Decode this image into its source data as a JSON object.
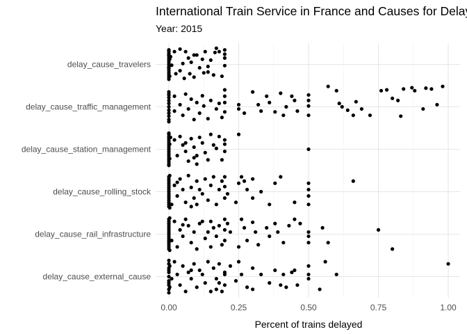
{
  "chart_data": {
    "type": "scatter",
    "title": "International Train Service in France and Causes for Delays",
    "subtitle": "Year: 2015",
    "xlabel": "Percent of trains delayed",
    "ylabel": "",
    "xlim": [
      -0.06,
      1.04
    ],
    "x_ticks": [
      0.0,
      0.25,
      0.5,
      0.75,
      1.0
    ],
    "x_tick_labels": [
      "0.00",
      "0.25",
      "0.50",
      "0.75",
      "1.00"
    ],
    "categories": [
      "delay_cause_travelers",
      "delay_cause_traffic_management",
      "delay_cause_station_management",
      "delay_cause_rolling_stock",
      "delay_cause_rail_infrastructure",
      "delay_cause_external_cause"
    ],
    "grid": true,
    "legend": "none",
    "point_color": "#000000",
    "points": {
      "delay_cause_travelers": [
        [
          0,
          0.34
        ],
        [
          0,
          0.2
        ],
        [
          0,
          -0.05
        ],
        [
          0,
          -0.3
        ],
        [
          0,
          0.1
        ],
        [
          0,
          -0.2
        ],
        [
          0,
          0.25
        ],
        [
          0,
          0.05
        ],
        [
          0,
          -0.1
        ],
        [
          0,
          0.3
        ],
        [
          0,
          -0.25
        ],
        [
          0,
          0.15
        ],
        [
          0,
          -0.35
        ],
        [
          0,
          0
        ],
        [
          0,
          0.22
        ],
        [
          0,
          -0.15
        ],
        [
          0,
          0.32
        ],
        [
          0,
          -0.08
        ],
        [
          0.003,
          0.12
        ],
        [
          0.003,
          -0.28
        ],
        [
          0.006,
          0.18
        ],
        [
          0.01,
          -0.02
        ],
        [
          0.02,
          0.3
        ],
        [
          0.025,
          -0.22
        ],
        [
          0.04,
          0.36
        ],
        [
          0.05,
          0.02
        ],
        [
          0.055,
          -0.33
        ],
        [
          0.06,
          0.3
        ],
        [
          0.07,
          0.15
        ],
        [
          0.075,
          -0.22
        ],
        [
          0.08,
          0.05
        ],
        [
          0.09,
          -0.3
        ],
        [
          0.1,
          0.22
        ],
        [
          0.11,
          -0.08
        ],
        [
          0.12,
          0.12
        ],
        [
          0.125,
          -0.2
        ],
        [
          0.13,
          0.3
        ],
        [
          0.14,
          -0.05
        ],
        [
          0.15,
          0.1
        ],
        [
          0.16,
          -0.25
        ],
        [
          0.165,
          0.28
        ],
        [
          0.17,
          0.38
        ],
        [
          0.18,
          0.3
        ],
        [
          0.19,
          -0.28
        ],
        [
          0.2,
          0.34
        ],
        [
          0.2,
          0.15
        ],
        [
          0.2,
          -0.03
        ],
        [
          0.2,
          0.24
        ],
        [
          0.04,
          -0.15
        ],
        [
          0.09,
          0.22
        ],
        [
          0.14,
          -0.18
        ]
      ],
      "delay_cause_traffic_management": [
        [
          0,
          0.3
        ],
        [
          0,
          0.15
        ],
        [
          0,
          0
        ],
        [
          0,
          -0.15
        ],
        [
          0,
          -0.3
        ],
        [
          0,
          0.22
        ],
        [
          0,
          -0.08
        ],
        [
          0,
          0.08
        ],
        [
          0,
          -0.22
        ],
        [
          0,
          0.35
        ],
        [
          0,
          -0.35
        ],
        [
          0,
          0.28
        ],
        [
          0.02,
          -0.1
        ],
        [
          0.02,
          0.25
        ],
        [
          0.04,
          0.05
        ],
        [
          0.05,
          -0.2
        ],
        [
          0.06,
          0.3
        ],
        [
          0.07,
          -0.05
        ],
        [
          0.08,
          0.18
        ],
        [
          0.09,
          -0.3
        ],
        [
          0.1,
          0.1
        ],
        [
          0.11,
          -0.15
        ],
        [
          0.12,
          0.26
        ],
        [
          0.125,
          0.02
        ],
        [
          0.14,
          -0.28
        ],
        [
          0.15,
          0.15
        ],
        [
          0.17,
          -0.05
        ],
        [
          0.18,
          0.08
        ],
        [
          0.19,
          -0.25
        ],
        [
          0.2,
          0.4
        ],
        [
          0.2,
          0.25
        ],
        [
          0.2,
          0.1
        ],
        [
          0.2,
          -0.12
        ],
        [
          0.25,
          0.05
        ],
        [
          0.25,
          -0.05
        ],
        [
          0.27,
          -0.15
        ],
        [
          0.3,
          0.35
        ],
        [
          0.32,
          0.05
        ],
        [
          0.33,
          -0.1
        ],
        [
          0.35,
          0.25
        ],
        [
          0.36,
          0.1
        ],
        [
          0.38,
          -0.12
        ],
        [
          0.4,
          0.32
        ],
        [
          0.41,
          -0.2
        ],
        [
          0.42,
          0
        ],
        [
          0.44,
          0.25
        ],
        [
          0.45,
          0.15
        ],
        [
          0.46,
          -0.1
        ],
        [
          0.5,
          0.15
        ],
        [
          0.5,
          0.02
        ],
        [
          0.5,
          -0.2
        ],
        [
          0.5,
          0.28
        ],
        [
          0.57,
          0.48
        ],
        [
          0.6,
          0.38
        ],
        [
          0.61,
          0.08
        ],
        [
          0.62,
          0
        ],
        [
          0.64,
          -0.08
        ],
        [
          0.66,
          -0.2
        ],
        [
          0.67,
          0.12
        ],
        [
          0.69,
          -0.05
        ],
        [
          0.72,
          -0.2
        ],
        [
          0.76,
          0.38
        ],
        [
          0.78,
          0.4
        ],
        [
          0.8,
          0.2
        ],
        [
          0.82,
          0.15
        ],
        [
          0.83,
          -0.22
        ],
        [
          0.84,
          0.42
        ],
        [
          0.87,
          0.45
        ],
        [
          0.88,
          0.38
        ],
        [
          0.91,
          -0.05
        ],
        [
          0.92,
          0.44
        ],
        [
          0.94,
          0.42
        ],
        [
          0.96,
          0.05
        ],
        [
          0.98,
          0.48
        ]
      ],
      "delay_cause_station_management": [
        [
          0,
          0.35
        ],
        [
          0,
          0.25
        ],
        [
          0,
          0.15
        ],
        [
          0,
          0.05
        ],
        [
          0,
          -0.05
        ],
        [
          0,
          -0.15
        ],
        [
          0,
          -0.25
        ],
        [
          0,
          -0.35
        ],
        [
          0,
          0.3
        ],
        [
          0,
          0.2
        ],
        [
          0,
          0.1
        ],
        [
          0,
          0
        ],
        [
          0,
          -0.1
        ],
        [
          0,
          -0.2
        ],
        [
          0,
          -0.3
        ],
        [
          0,
          0.38
        ],
        [
          0,
          -0.38
        ],
        [
          0.003,
          0.12
        ],
        [
          0.003,
          -0.22
        ],
        [
          0.006,
          0.28
        ],
        [
          0.02,
          0.22
        ],
        [
          0.03,
          -0.15
        ],
        [
          0.04,
          0.3
        ],
        [
          0.05,
          0.1
        ],
        [
          0.06,
          -0.05
        ],
        [
          0.07,
          -0.28
        ],
        [
          0.08,
          0.25
        ],
        [
          0.09,
          0.05
        ],
        [
          0.1,
          -0.15
        ],
        [
          0.1,
          -0.35
        ],
        [
          0.11,
          0.28
        ],
        [
          0.12,
          0.15
        ],
        [
          0.13,
          -0.08
        ],
        [
          0.14,
          -0.25
        ],
        [
          0.15,
          0.35
        ],
        [
          0.16,
          0.1
        ],
        [
          0.17,
          0.02
        ],
        [
          0.18,
          0.3
        ],
        [
          0.19,
          -0.25
        ],
        [
          0.2,
          0.12
        ],
        [
          0.2,
          -0.05
        ],
        [
          0.2,
          0.22
        ],
        [
          0.25,
          0.35
        ],
        [
          0.06,
          0.15
        ],
        [
          0.09,
          -0.2
        ],
        [
          0.5,
          0
        ]
      ],
      "delay_cause_rolling_stock": [
        [
          0,
          0.35
        ],
        [
          0,
          0.25
        ],
        [
          0,
          0.15
        ],
        [
          0,
          0.05
        ],
        [
          0,
          -0.05
        ],
        [
          0,
          -0.15
        ],
        [
          0,
          -0.25
        ],
        [
          0,
          -0.35
        ],
        [
          0,
          0.3
        ],
        [
          0,
          0.2
        ],
        [
          0,
          0.1
        ],
        [
          0,
          0
        ],
        [
          0,
          -0.1
        ],
        [
          0,
          -0.2
        ],
        [
          0,
          -0.3
        ],
        [
          0.003,
          0.38
        ],
        [
          0.003,
          -0.38
        ],
        [
          0.01,
          -0.3
        ],
        [
          0.02,
          0.15
        ],
        [
          0.03,
          -0.1
        ],
        [
          0.04,
          0.3
        ],
        [
          0.05,
          0.05
        ],
        [
          0.06,
          -0.25
        ],
        [
          0.07,
          0.38
        ],
        [
          0.08,
          0.1
        ],
        [
          0.09,
          -0.15
        ],
        [
          0.1,
          0.25
        ],
        [
          0.1,
          -0.3
        ],
        [
          0.11,
          0.05
        ],
        [
          0.12,
          -0.05
        ],
        [
          0.13,
          0.3
        ],
        [
          0.14,
          -0.2
        ],
        [
          0.15,
          0.15
        ],
        [
          0.16,
          0.35
        ],
        [
          0.17,
          -0.3
        ],
        [
          0.18,
          0.05
        ],
        [
          0.19,
          0.25
        ],
        [
          0.2,
          -0.15
        ],
        [
          0.2,
          0.35
        ],
        [
          0.2,
          0.12
        ],
        [
          0.21,
          -0.05
        ],
        [
          0.24,
          -0.25
        ],
        [
          0.25,
          0.2
        ],
        [
          0.26,
          0.35
        ],
        [
          0.27,
          0.25
        ],
        [
          0.28,
          0.05
        ],
        [
          0.3,
          -0.15
        ],
        [
          0.3,
          0.3
        ],
        [
          0.33,
          0
        ],
        [
          0.36,
          -0.3
        ],
        [
          0.38,
          0.2
        ],
        [
          0.4,
          0.35
        ],
        [
          0.45,
          -0.25
        ],
        [
          0.5,
          0.2
        ],
        [
          0.5,
          0.05
        ],
        [
          0.5,
          -0.1
        ],
        [
          0.5,
          -0.3
        ],
        [
          0.66,
          0.25
        ],
        [
          0.03,
          0.22
        ],
        [
          0.08,
          -0.35
        ]
      ],
      "delay_cause_rail_infrastructure": [
        [
          0,
          0.35
        ],
        [
          0,
          0.25
        ],
        [
          0,
          0.15
        ],
        [
          0,
          0.05
        ],
        [
          0,
          -0.05
        ],
        [
          0,
          -0.15
        ],
        [
          0,
          -0.25
        ],
        [
          0,
          -0.35
        ],
        [
          0,
          0.3
        ],
        [
          0,
          0.2
        ],
        [
          0,
          0.1
        ],
        [
          0,
          0
        ],
        [
          0,
          -0.1
        ],
        [
          0,
          -0.2
        ],
        [
          0,
          -0.3
        ],
        [
          0.003,
          0.38
        ],
        [
          0.003,
          -0.38
        ],
        [
          0.01,
          -0.15
        ],
        [
          0.02,
          0.3
        ],
        [
          0.03,
          -0.3
        ],
        [
          0.04,
          0.1
        ],
        [
          0.05,
          -0.05
        ],
        [
          0.06,
          0.35
        ],
        [
          0.07,
          0.2
        ],
        [
          0.08,
          -0.2
        ],
        [
          0.09,
          0.05
        ],
        [
          0.1,
          -0.35
        ],
        [
          0.11,
          0.25
        ],
        [
          0.12,
          0.3
        ],
        [
          0.13,
          -0.1
        ],
        [
          0.14,
          0.05
        ],
        [
          0.15,
          -0.3
        ],
        [
          0.16,
          0.15
        ],
        [
          0.17,
          -0.05
        ],
        [
          0.18,
          0.2
        ],
        [
          0.19,
          -0.25
        ],
        [
          0.2,
          0.35
        ],
        [
          0.2,
          0.1
        ],
        [
          0.2,
          -0.15
        ],
        [
          0.21,
          0.25
        ],
        [
          0.22,
          0.05
        ],
        [
          0.25,
          -0.3
        ],
        [
          0.26,
          0.35
        ],
        [
          0.27,
          0.15
        ],
        [
          0.28,
          -0.15
        ],
        [
          0.3,
          0.28
        ],
        [
          0.31,
          0.05
        ],
        [
          0.32,
          -0.25
        ],
        [
          0.35,
          0.15
        ],
        [
          0.36,
          -0.05
        ],
        [
          0.38,
          0.25
        ],
        [
          0.39,
          0.05
        ],
        [
          0.41,
          -0.2
        ],
        [
          0.43,
          0.2
        ],
        [
          0.45,
          0.35
        ],
        [
          0.47,
          0.25
        ],
        [
          0.5,
          0.05
        ],
        [
          0.5,
          -0.05
        ],
        [
          0.5,
          -0.2
        ],
        [
          0.55,
          0.15
        ],
        [
          0.57,
          -0.2
        ],
        [
          0.75,
          0.1
        ],
        [
          0.8,
          -0.35
        ],
        [
          0.05,
          0.22
        ],
        [
          0.15,
          0.3
        ]
      ],
      "delay_cause_external_cause": [
        [
          0,
          0.3
        ],
        [
          0,
          0.2
        ],
        [
          0,
          0.1
        ],
        [
          0,
          0
        ],
        [
          0,
          -0.1
        ],
        [
          0,
          -0.2
        ],
        [
          0,
          -0.3
        ],
        [
          0,
          0.38
        ],
        [
          0,
          -0.38
        ],
        [
          0,
          0.15
        ],
        [
          0,
          -0.15
        ],
        [
          0.003,
          0.25
        ],
        [
          0.003,
          -0.25
        ],
        [
          0.01,
          -0.05
        ],
        [
          0.02,
          0.35
        ],
        [
          0.03,
          0.05
        ],
        [
          0.04,
          -0.2
        ],
        [
          0.05,
          0.25
        ],
        [
          0.06,
          -0.35
        ],
        [
          0.07,
          0.1
        ],
        [
          0.08,
          -0.05
        ],
        [
          0.09,
          0.3
        ],
        [
          0.1,
          -0.25
        ],
        [
          0.11,
          0.15
        ],
        [
          0.12,
          0.05
        ],
        [
          0.13,
          -0.15
        ],
        [
          0.14,
          0.35
        ],
        [
          0.15,
          -0.35
        ],
        [
          0.16,
          0.2
        ],
        [
          0.17,
          -0.3
        ],
        [
          0.17,
          -0.05
        ],
        [
          0.18,
          0.3
        ],
        [
          0.19,
          -0.35
        ],
        [
          0.2,
          0.1
        ],
        [
          0.2,
          -0.2
        ],
        [
          0.2,
          0.05
        ],
        [
          0.22,
          0.25
        ],
        [
          0.24,
          -0.1
        ],
        [
          0.25,
          0.35
        ],
        [
          0.26,
          0.05
        ],
        [
          0.28,
          -0.25
        ],
        [
          0.3,
          0.2
        ],
        [
          0.3,
          -0.3
        ],
        [
          0.33,
          0.05
        ],
        [
          0.36,
          -0.15
        ],
        [
          0.38,
          0.15
        ],
        [
          0.4,
          -0.2
        ],
        [
          0.41,
          0.05
        ],
        [
          0.42,
          -0.25
        ],
        [
          0.44,
          0.1
        ],
        [
          0.45,
          0.15
        ],
        [
          0.46,
          -0.2
        ],
        [
          0.5,
          0.25
        ],
        [
          0.5,
          0.05
        ],
        [
          0.5,
          -0.05
        ],
        [
          0.54,
          -0.3
        ],
        [
          0.56,
          0.35
        ],
        [
          0.6,
          0.05
        ],
        [
          0.08,
          0.15
        ],
        [
          0.18,
          -0.15
        ],
        [
          1.0,
          0.3
        ]
      ]
    }
  }
}
